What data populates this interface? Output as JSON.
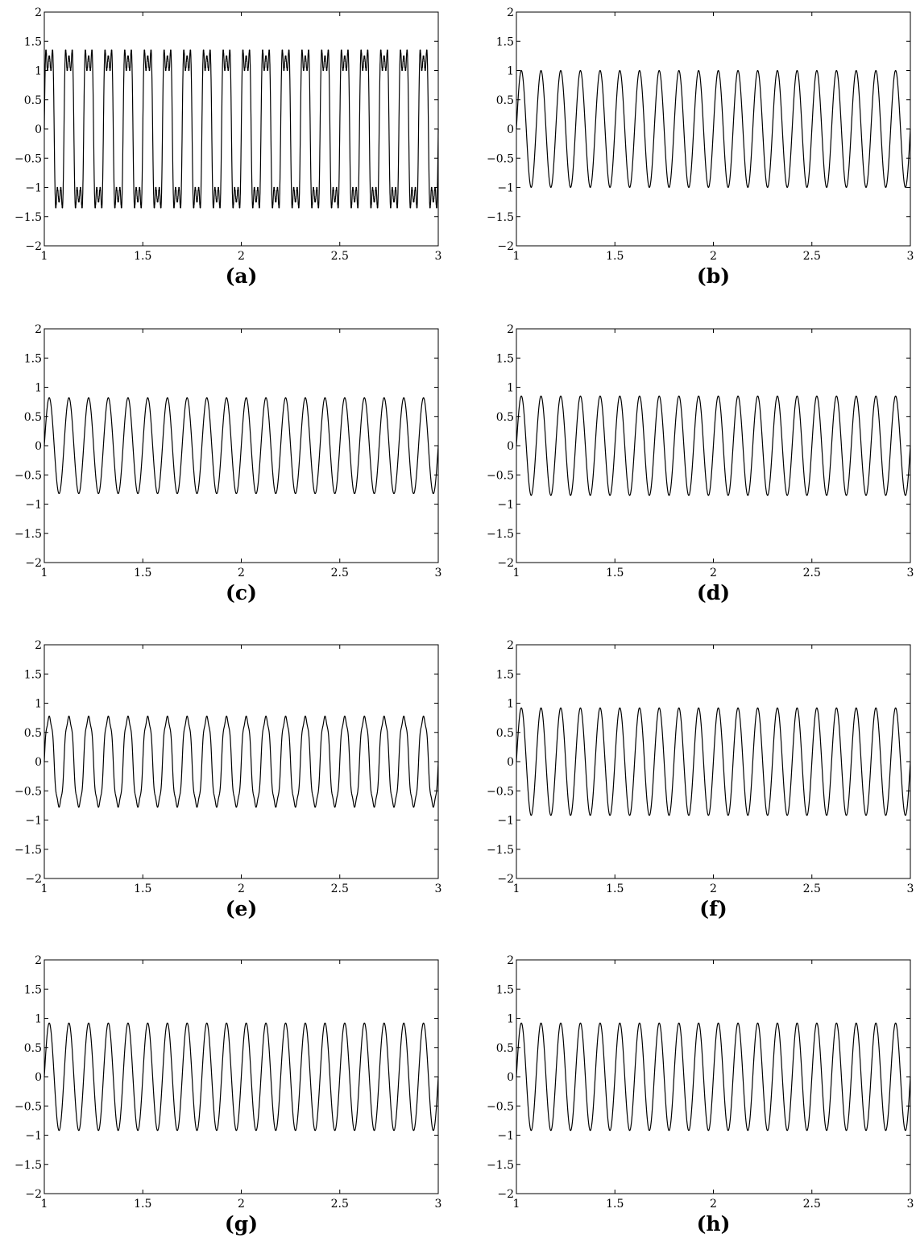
{
  "chart_data": [
    {
      "panel_label": "(a)",
      "type": "line",
      "xlim": [
        1,
        3
      ],
      "ylim": [
        -2,
        2
      ],
      "xticks": [
        "1",
        "1.5",
        "2",
        "2.5",
        "3"
      ],
      "yticks": [
        "2",
        "1.5",
        "1",
        "0.5",
        "0",
        "−0.5",
        "−1",
        "−1.5",
        "−2"
      ],
      "grid": false,
      "series": [
        {
          "frequency": 10,
          "waveform": "composite",
          "components": [
            [
              1,
              1.0
            ],
            [
              3,
              0.33
            ],
            [
              5,
              0.2
            ]
          ],
          "peak": 1.35
        }
      ]
    },
    {
      "panel_label": "(b)",
      "type": "line",
      "xlim": [
        1,
        3
      ],
      "ylim": [
        -2,
        2
      ],
      "xticks": [
        "1",
        "1.5",
        "2",
        "2.5",
        "3"
      ],
      "yticks": [
        "2",
        "1.5",
        "1",
        "0.5",
        "0",
        "−0.5",
        "−1",
        "−1.5",
        "−2"
      ],
      "grid": false,
      "series": [
        {
          "frequency": 10,
          "waveform": "sine",
          "amplitude": 1.0
        }
      ]
    },
    {
      "panel_label": "(c)",
      "type": "line",
      "xlim": [
        1,
        3
      ],
      "ylim": [
        -2,
        2
      ],
      "xticks": [
        "1",
        "1.5",
        "2",
        "2.5",
        "3"
      ],
      "yticks": [
        "2",
        "1.5",
        "1",
        "0.5",
        "0",
        "−0.5",
        "−1",
        "−1.5",
        "−2"
      ],
      "grid": false,
      "series": [
        {
          "frequency": 10,
          "waveform": "sine",
          "amplitude": 0.82
        }
      ]
    },
    {
      "panel_label": "(d)",
      "type": "line",
      "xlim": [
        1,
        3
      ],
      "ylim": [
        -2,
        2
      ],
      "xticks": [
        "1",
        "1.5",
        "2",
        "2.5",
        "3"
      ],
      "yticks": [
        "2",
        "1.5",
        "1",
        "0.5",
        "0",
        "−0.5",
        "−1",
        "−1.5",
        "−2"
      ],
      "grid": false,
      "series": [
        {
          "frequency": 10,
          "waveform": "sine",
          "amplitude": 0.85
        }
      ]
    },
    {
      "panel_label": "(e)",
      "type": "line",
      "xlim": [
        1,
        3
      ],
      "ylim": [
        -2,
        2
      ],
      "xticks": [
        "1",
        "1.5",
        "2",
        "2.5",
        "3"
      ],
      "yticks": [
        "2",
        "1.5",
        "1",
        "0.5",
        "0",
        "−0.5",
        "−1",
        "−1.5",
        "−2"
      ],
      "grid": false,
      "series": [
        {
          "frequency": 10,
          "waveform": "composite",
          "components": [
            [
              1,
              0.78
            ],
            [
              3,
              0.07
            ],
            [
              5,
              0.05
            ]
          ],
          "peak": 0.78
        }
      ]
    },
    {
      "panel_label": "(f)",
      "type": "line",
      "xlim": [
        1,
        3
      ],
      "ylim": [
        -2,
        2
      ],
      "xticks": [
        "1",
        "1.5",
        "2",
        "2.5",
        "3"
      ],
      "yticks": [
        "2",
        "1.5",
        "1",
        "0.5",
        "0",
        "−0.5",
        "−1",
        "−1.5",
        "−2"
      ],
      "grid": false,
      "series": [
        {
          "frequency": 10,
          "waveform": "sine",
          "amplitude": 0.92
        }
      ]
    },
    {
      "panel_label": "(g)",
      "type": "line",
      "xlim": [
        1,
        3
      ],
      "ylim": [
        -2,
        2
      ],
      "xticks": [
        "1",
        "1.5",
        "2",
        "2.5",
        "3"
      ],
      "yticks": [
        "2",
        "1.5",
        "1",
        "0.5",
        "0",
        "−0.5",
        "−1",
        "−1.5",
        "−2"
      ],
      "grid": false,
      "series": [
        {
          "frequency": 10,
          "waveform": "sine",
          "amplitude": 0.92
        }
      ]
    },
    {
      "panel_label": "(h)",
      "type": "line",
      "xlim": [
        1,
        3
      ],
      "ylim": [
        -2,
        2
      ],
      "xticks": [
        "1",
        "1.5",
        "2",
        "2.5",
        "3"
      ],
      "yticks": [
        "2",
        "1.5",
        "1",
        "0.5",
        "0",
        "−0.5",
        "−1",
        "−1.5",
        "−2"
      ],
      "grid": false,
      "series": [
        {
          "frequency": 10,
          "waveform": "sine",
          "amplitude": 0.92
        }
      ]
    }
  ]
}
